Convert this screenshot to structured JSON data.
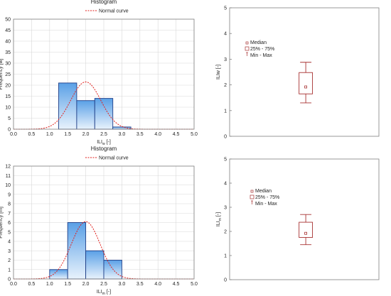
{
  "colors": {
    "bar_fill_top": "#5aa0e6",
    "bar_fill_bottom": "#e8f2fc",
    "bar_stroke": "#1f3f88",
    "normal_curve": "#e0201c",
    "box": "#a83232",
    "grid": "#d8d8d8",
    "frame": "#808080"
  },
  "chart_data": [
    {
      "type": "bar",
      "subtype": "histogram",
      "title": "Histogram",
      "legend": [
        "Normal curve"
      ],
      "xlabel": "ILI",
      "xlabel_sub": "w",
      "xlabel_suffix": " [-]",
      "ylabel": "Frequency [w]",
      "xlim": [
        0,
        5
      ],
      "ylim": [
        0,
        50
      ],
      "xticks": [
        "0.0",
        "0.5",
        "1.0",
        "1.5",
        "2.0",
        "2.5",
        "3.0",
        "3.5",
        "4.0",
        "4.5",
        "5.0"
      ],
      "yticks": [
        "0",
        "5",
        "10",
        "15",
        "20",
        "25",
        "30",
        "35",
        "40",
        "45",
        "50"
      ],
      "bin_edges": [
        1.25,
        1.75,
        2.25,
        2.75,
        3.25
      ],
      "values": [
        21,
        13,
        14,
        1
      ],
      "normal_curve": {
        "mean": 2.0,
        "sd": 0.42,
        "peak": 21.5
      }
    },
    {
      "type": "box",
      "ylabel": "ILIw [-]",
      "ylim": [
        0,
        5
      ],
      "yticks": [
        "0",
        "1",
        "2",
        "3",
        "4",
        "5"
      ],
      "legend": [
        "Median",
        "25% - 75%",
        "Min - Max"
      ],
      "median": 1.92,
      "q1": 1.65,
      "q3": 2.48,
      "min": 1.3,
      "max": 2.88
    },
    {
      "type": "bar",
      "subtype": "histogram",
      "title": "Histogram",
      "legend": [
        "Normal curve"
      ],
      "xlabel": "ILI",
      "xlabel_sub": "m",
      "xlabel_suffix": " [-]",
      "ylabel": "Frequency [m]",
      "xlim": [
        0,
        5
      ],
      "ylim": [
        0,
        12
      ],
      "xticks": [
        "0.0",
        "0.5",
        "1.0",
        "1.5",
        "2.0",
        "2.5",
        "3.0",
        "3.5",
        "4.0",
        "4.5",
        "5.0"
      ],
      "yticks": [
        "0",
        "1",
        "2",
        "3",
        "4",
        "5",
        "6",
        "7",
        "8",
        "9",
        "10",
        "11",
        "12"
      ],
      "bin_edges": [
        1.0,
        1.5,
        2.0,
        2.5,
        3.0
      ],
      "values": [
        1,
        6,
        3,
        2
      ],
      "normal_curve": {
        "mean": 2.0,
        "sd": 0.4,
        "peak": 6.1
      }
    },
    {
      "type": "box",
      "ylabel": "ILI",
      "ylabel_sub": "m",
      "ylabel_suffix": " [-]",
      "ylim": [
        0,
        5
      ],
      "yticks": [
        "0",
        "1",
        "2",
        "3",
        "4",
        "5"
      ],
      "legend": [
        "Median",
        "25% - 75%",
        "Min - Max"
      ],
      "median": 1.92,
      "q1": 1.75,
      "q3": 2.38,
      "min": 1.45,
      "max": 2.7
    }
  ]
}
